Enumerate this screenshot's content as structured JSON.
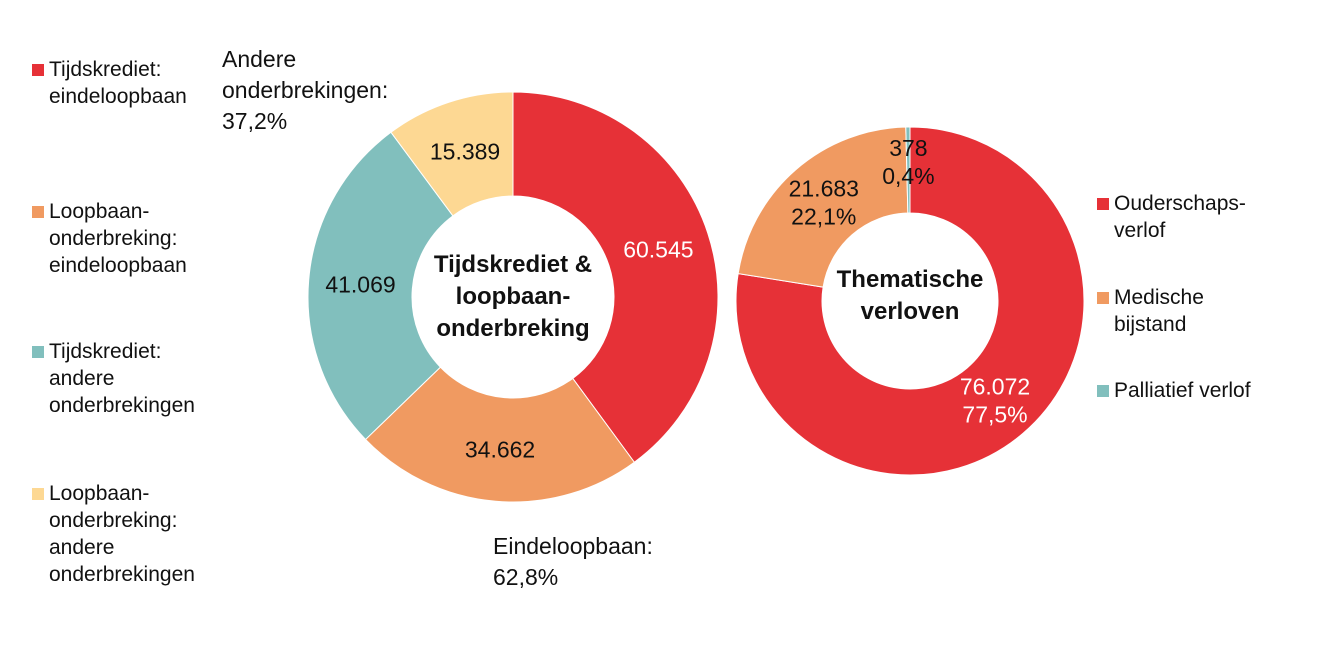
{
  "chart_data": [
    {
      "type": "pie",
      "title": "Tijdskrediet & loopbaanonderbreking",
      "title_lines": [
        "Tijdskrediet &",
        "loopbaan-",
        "onderbreking"
      ],
      "categories": [
        "Tijdskrediet: eindeloopbaan",
        "Loopbaanonderbreking: eindeloopbaan",
        "Tijdskrediet: andere onderbrekingen",
        "Loopbaanonderbreking: andere onderbrekingen"
      ],
      "values": [
        60545,
        34662,
        41069,
        15389
      ],
      "data_labels": [
        "60.545",
        "34.662",
        "41.069",
        "15.389"
      ],
      "colors": [
        "#e63137",
        "#f09a61",
        "#81bfbd",
        "#fdd893"
      ],
      "annotations": [
        {
          "lines": [
            "Andere",
            "onderbrekingen:",
            "37,2%"
          ]
        },
        {
          "lines": [
            "Eindeloopbaan:",
            "62,8%"
          ]
        }
      ],
      "legend": [
        {
          "lines": [
            "Tijdskrediet:",
            "eindeloopbaan"
          ]
        },
        {
          "lines": [
            "Loopbaan-",
            "onderbreking:",
            "eindeloopbaan"
          ]
        },
        {
          "lines": [
            "Tijdskrediet:",
            "andere",
            "onderbrekingen"
          ]
        },
        {
          "lines": [
            "Loopbaan-",
            "onderbreking:",
            "andere",
            "onderbrekingen"
          ]
        }
      ],
      "legend_position": "left"
    },
    {
      "type": "pie",
      "title": "Thematische verloven",
      "title_lines": [
        "Thematische",
        "verloven"
      ],
      "categories": [
        "Ouderschapsverlof",
        "Medische bijstand",
        "Palliatief verlof"
      ],
      "values": [
        76072,
        21683,
        378
      ],
      "data_labels": [
        [
          "76.072",
          "77,5%"
        ],
        [
          "21.683",
          "22,1%"
        ],
        [
          "378",
          "0,4%"
        ]
      ],
      "colors": [
        "#e63137",
        "#f09a61",
        "#81bfbd"
      ],
      "legend": [
        {
          "lines": [
            "Ouderschaps-",
            "verlof"
          ]
        },
        {
          "lines": [
            "Medische",
            "bijstand"
          ]
        },
        {
          "lines": [
            "Palliatief verlof"
          ]
        }
      ],
      "legend_position": "right"
    }
  ]
}
